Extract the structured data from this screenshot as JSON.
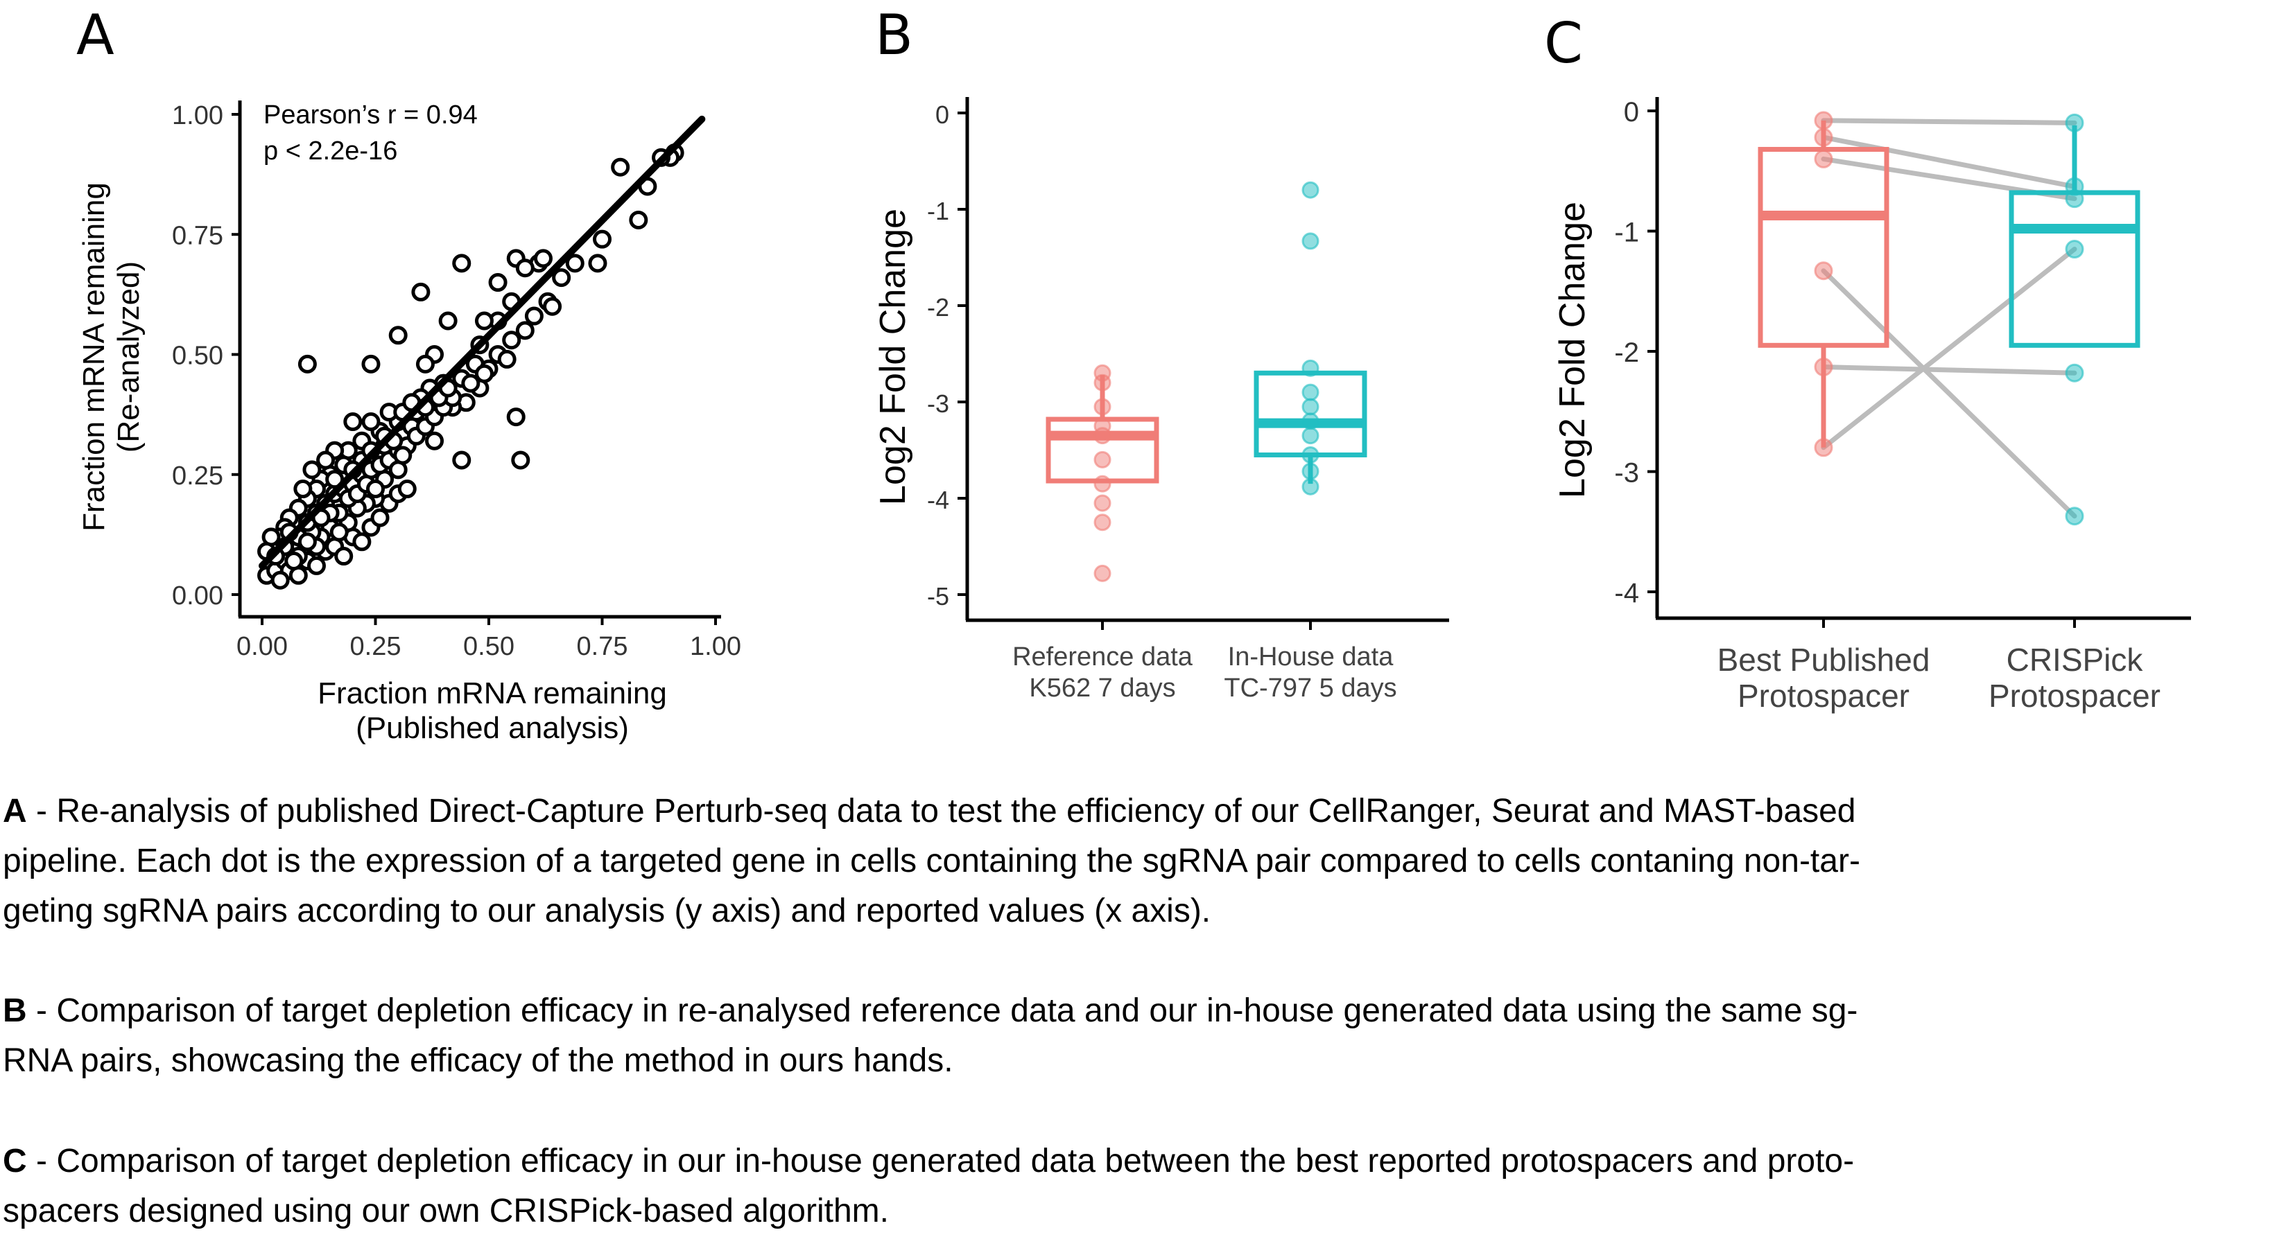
{
  "panels": {
    "A": {
      "letter": "A",
      "stats": {
        "r": "Pearson’s r = 0.94",
        "p": "p < 2.2e-16"
      }
    },
    "B": {
      "letter": "B"
    },
    "C": {
      "letter": "C"
    }
  },
  "chart_data": [
    {
      "panel": "A",
      "type": "scatter",
      "xlabel": [
        "Fraction  mRNA  remaining",
        "(Published analysis)"
      ],
      "ylabel": [
        "Fraction mRNA remaining",
        "(Re-analyzed)"
      ],
      "xlim": [
        0,
        1
      ],
      "ylim": [
        0,
        1
      ],
      "xticks": [
        "0.00",
        "0.25",
        "0.50",
        "0.75",
        "1.00"
      ],
      "yticks": [
        "0.00",
        "0.25",
        "0.50",
        "0.75",
        "1.00"
      ],
      "grid": false,
      "fit_line": {
        "x": [
          0.0,
          0.97
        ],
        "y": [
          0.06,
          0.99
        ]
      },
      "points": [
        [
          0.91,
          0.92
        ],
        [
          0.9,
          0.91
        ],
        [
          0.88,
          0.91
        ],
        [
          0.85,
          0.85
        ],
        [
          0.79,
          0.89
        ],
        [
          0.83,
          0.78
        ],
        [
          0.75,
          0.74
        ],
        [
          0.74,
          0.69
        ],
        [
          0.69,
          0.69
        ],
        [
          0.61,
          0.69
        ],
        [
          0.62,
          0.7
        ],
        [
          0.63,
          0.61
        ],
        [
          0.56,
          0.7
        ],
        [
          0.58,
          0.68
        ],
        [
          0.52,
          0.65
        ],
        [
          0.55,
          0.61
        ],
        [
          0.52,
          0.57
        ],
        [
          0.55,
          0.53
        ],
        [
          0.49,
          0.57
        ],
        [
          0.48,
          0.52
        ],
        [
          0.44,
          0.69
        ],
        [
          0.41,
          0.57
        ],
        [
          0.35,
          0.63
        ],
        [
          0.38,
          0.5
        ],
        [
          0.36,
          0.48
        ],
        [
          0.3,
          0.54
        ],
        [
          0.24,
          0.48
        ],
        [
          0.1,
          0.48
        ],
        [
          0.47,
          0.48
        ],
        [
          0.44,
          0.45
        ],
        [
          0.48,
          0.43
        ],
        [
          0.45,
          0.4
        ],
        [
          0.56,
          0.37
        ],
        [
          0.42,
          0.39
        ],
        [
          0.4,
          0.44
        ],
        [
          0.37,
          0.43
        ],
        [
          0.35,
          0.41
        ],
        [
          0.34,
          0.38
        ],
        [
          0.3,
          0.36
        ],
        [
          0.33,
          0.35
        ],
        [
          0.28,
          0.38
        ],
        [
          0.26,
          0.34
        ],
        [
          0.27,
          0.31
        ],
        [
          0.24,
          0.36
        ],
        [
          0.22,
          0.32
        ],
        [
          0.2,
          0.36
        ],
        [
          0.22,
          0.28
        ],
        [
          0.19,
          0.3
        ],
        [
          0.18,
          0.27
        ],
        [
          0.16,
          0.3
        ],
        [
          0.15,
          0.25
        ],
        [
          0.14,
          0.28
        ],
        [
          0.13,
          0.24
        ],
        [
          0.12,
          0.22
        ],
        [
          0.11,
          0.26
        ],
        [
          0.1,
          0.2
        ],
        [
          0.09,
          0.22
        ],
        [
          0.08,
          0.18
        ],
        [
          0.07,
          0.15
        ],
        [
          0.06,
          0.16
        ],
        [
          0.05,
          0.14
        ],
        [
          0.04,
          0.12
        ],
        [
          0.03,
          0.1
        ],
        [
          0.02,
          0.12
        ],
        [
          0.01,
          0.09
        ],
        [
          0.02,
          0.06
        ],
        [
          0.01,
          0.04
        ],
        [
          0.03,
          0.05
        ],
        [
          0.05,
          0.07
        ],
        [
          0.06,
          0.05
        ],
        [
          0.04,
          0.03
        ],
        [
          0.08,
          0.04
        ],
        [
          0.1,
          0.07
        ],
        [
          0.12,
          0.06
        ],
        [
          0.14,
          0.09
        ],
        [
          0.16,
          0.1
        ],
        [
          0.18,
          0.08
        ],
        [
          0.2,
          0.12
        ],
        [
          0.22,
          0.11
        ],
        [
          0.24,
          0.14
        ],
        [
          0.26,
          0.16
        ],
        [
          0.28,
          0.19
        ],
        [
          0.3,
          0.21
        ],
        [
          0.32,
          0.22
        ],
        [
          0.27,
          0.24
        ],
        [
          0.25,
          0.2
        ],
        [
          0.23,
          0.19
        ],
        [
          0.21,
          0.18
        ],
        [
          0.19,
          0.15
        ],
        [
          0.17,
          0.17
        ],
        [
          0.15,
          0.14
        ],
        [
          0.13,
          0.12
        ],
        [
          0.11,
          0.13
        ],
        [
          0.09,
          0.1
        ],
        [
          0.07,
          0.09
        ],
        [
          0.05,
          0.1
        ],
        [
          0.08,
          0.12
        ],
        [
          0.1,
          0.15
        ],
        [
          0.12,
          0.17
        ],
        [
          0.14,
          0.19
        ],
        [
          0.16,
          0.21
        ],
        [
          0.18,
          0.22
        ],
        [
          0.2,
          0.23
        ],
        [
          0.22,
          0.25
        ],
        [
          0.24,
          0.26
        ],
        [
          0.26,
          0.27
        ],
        [
          0.28,
          0.28
        ],
        [
          0.3,
          0.3
        ],
        [
          0.32,
          0.31
        ],
        [
          0.34,
          0.33
        ],
        [
          0.36,
          0.35
        ],
        [
          0.38,
          0.37
        ],
        [
          0.4,
          0.39
        ],
        [
          0.42,
          0.41
        ],
        [
          0.46,
          0.44
        ],
        [
          0.5,
          0.47
        ],
        [
          0.52,
          0.5
        ],
        [
          0.54,
          0.49
        ],
        [
          0.58,
          0.55
        ],
        [
          0.6,
          0.58
        ],
        [
          0.64,
          0.6
        ],
        [
          0.66,
          0.66
        ],
        [
          0.3,
          0.26
        ],
        [
          0.38,
          0.32
        ],
        [
          0.44,
          0.28
        ],
        [
          0.57,
          0.28
        ],
        [
          0.49,
          0.46
        ],
        [
          0.31,
          0.38
        ],
        [
          0.33,
          0.4
        ],
        [
          0.36,
          0.39
        ],
        [
          0.39,
          0.41
        ],
        [
          0.41,
          0.43
        ],
        [
          0.06,
          0.13
        ],
        [
          0.03,
          0.08
        ],
        [
          0.12,
          0.1
        ],
        [
          0.17,
          0.13
        ],
        [
          0.19,
          0.2
        ],
        [
          0.21,
          0.21
        ],
        [
          0.23,
          0.23
        ],
        [
          0.25,
          0.22
        ],
        [
          0.15,
          0.17
        ],
        [
          0.13,
          0.16
        ],
        [
          0.1,
          0.11
        ],
        [
          0.08,
          0.08
        ],
        [
          0.07,
          0.07
        ],
        [
          0.16,
          0.24
        ],
        [
          0.2,
          0.26
        ],
        [
          0.24,
          0.3
        ],
        [
          0.27,
          0.33
        ],
        [
          0.29,
          0.32
        ],
        [
          0.31,
          0.29
        ]
      ],
      "stroke_color": "#000000"
    },
    {
      "panel": "B",
      "type": "box",
      "ylabel": "Log2 Fold Change",
      "ylim": [
        -5.2,
        0.1
      ],
      "yticks": [
        "0",
        "-1",
        "-2",
        "-3",
        "-4",
        "-5"
      ],
      "categories": [
        [
          "Reference data",
          "K562  7  days"
        ],
        [
          "In-House data",
          "TC-797 5 days"
        ]
      ],
      "boxes": [
        {
          "q1": -3.82,
          "median": -3.35,
          "q3": -3.18,
          "whisker_low": -3.82,
          "whisker_high": -2.72,
          "color": "#F07D77",
          "points": [
            -2.7,
            -2.8,
            -3.05,
            -3.25,
            -3.35,
            -3.6,
            -3.85,
            -4.05,
            -4.25,
            -4.78
          ]
        },
        {
          "q1": -3.55,
          "median": -3.22,
          "q3": -2.7,
          "whisker_low": -3.85,
          "whisker_high": -2.7,
          "color": "#22BEC2",
          "points": [
            -0.8,
            -1.33,
            -2.65,
            -2.9,
            -3.05,
            -3.2,
            -3.35,
            -3.55,
            -3.72,
            -3.88
          ]
        }
      ],
      "grid": false
    },
    {
      "panel": "C",
      "type": "box",
      "ylabel": "Log2 Fold Change",
      "ylim": [
        -4.1,
        0.1
      ],
      "yticks": [
        "0",
        "-1",
        "-2",
        "-3",
        "-4"
      ],
      "categories": [
        [
          "Best Published",
          "Protospacer"
        ],
        [
          "CRISPick",
          "Protospacer"
        ]
      ],
      "boxes": [
        {
          "q1": -1.95,
          "median": -0.87,
          "q3": -0.32,
          "whisker_low": -2.8,
          "whisker_high": -0.08,
          "color": "#F07D77",
          "points": [
            -0.08,
            -0.22,
            -0.4,
            -1.33,
            -2.13,
            -2.8
          ]
        },
        {
          "q1": -1.95,
          "median": -0.98,
          "q3": -0.68,
          "whisker_low": -1.95,
          "whisker_high": -0.12,
          "color": "#22BEC2",
          "points": [
            -0.1,
            -0.63,
            -0.73,
            -1.15,
            -2.18,
            -3.37
          ]
        }
      ],
      "pairs": [
        [
          -0.08,
          -0.1
        ],
        [
          -0.22,
          -0.63
        ],
        [
          -0.4,
          -0.73
        ],
        [
          -1.33,
          -3.37
        ],
        [
          -2.13,
          -2.18
        ],
        [
          -2.8,
          -1.15
        ]
      ],
      "line_color": "#bcbcbc",
      "grid": false
    }
  ],
  "caption": [
    {
      "letter": "A",
      "lines": [
        " - Re-analysis of published Direct-Capture Perturb-seq data to test the efficiency of our CellRanger, Seurat and MAST-based",
        "pipeline. Each dot is the expression of a targeted gene in cells containing the sgRNA pair compared to cells contaning non-tar-",
        "geting sgRNA pairs according to our analysis (y axis) and reported values (x axis)."
      ]
    },
    {
      "letter": "B",
      "lines": [
        " - Comparison of target depletion efficacy in re-analysed reference data and our in-house generated data using the same sg-",
        "RNA pairs, showcasing the efficacy of the method in ours hands."
      ]
    },
    {
      "letter": "C",
      "lines": [
        " - Comparison of target depletion efficacy in our in-house generated data between the best reported protospacers and proto-",
        "spacers designed using our own CRISPick-based algorithm."
      ]
    }
  ]
}
